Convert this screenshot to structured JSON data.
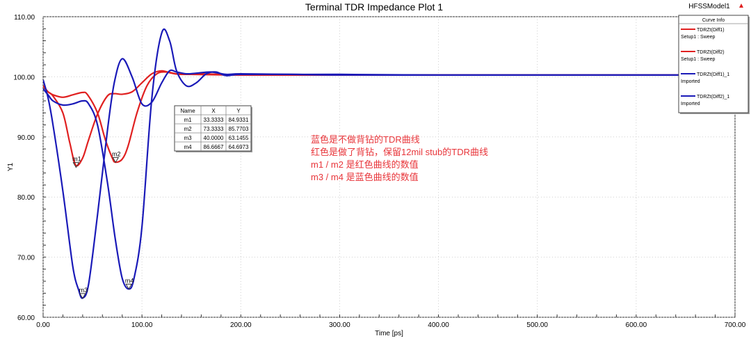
{
  "chart_data": {
    "type": "line",
    "title": "Terminal TDR Impedance Plot 1",
    "model_label": "HFSSModel1",
    "xlabel": "Time [ps]",
    "ylabel": "Y1",
    "xlim": [
      0,
      700
    ],
    "ylim": [
      60,
      110
    ],
    "x_ticks": [
      "0.00",
      "100.00",
      "200.00",
      "300.00",
      "400.00",
      "500.00",
      "600.00",
      "700.00"
    ],
    "y_ticks": [
      "60.00",
      "70.00",
      "80.00",
      "90.00",
      "100.00",
      "110.00"
    ],
    "grid": true,
    "legend": {
      "title": "Curve Info",
      "placement": "top-right",
      "entries": [
        {
          "line1": "TDRZt(Diff1)",
          "line2": "Setup1 : Sweep",
          "color": "#e02020"
        },
        {
          "line1": "TDRZt(Diff2)",
          "line2": "Setup1 : Sweep",
          "color": "#e02020"
        },
        {
          "line1": "TDRZt(Diff1)_1",
          "line2": "Imported",
          "color": "#1a1ab8"
        },
        {
          "line1": "TDRZt(Diff2)_1",
          "line2": "Imported",
          "color": "#1a1ab8"
        }
      ]
    },
    "series": [
      {
        "color": "#e02020",
        "x": [
          0,
          5,
          10,
          20,
          27,
          33,
          40,
          46,
          55,
          65,
          72,
          80,
          90,
          100,
          110,
          120,
          130,
          140,
          160,
          200,
          300,
          360,
          500,
          645,
          700
        ],
        "y": [
          98.5,
          97.5,
          96.8,
          94,
          89,
          85.3,
          86.5,
          89.5,
          93.8,
          96.8,
          97.2,
          97.1,
          97.5,
          99,
          100.5,
          101,
          100.6,
          100.4,
          100.5,
          100.3,
          100.3,
          100.3,
          100.3,
          100.3,
          100.3
        ]
      },
      {
        "color": "#e02020",
        "x": [
          0,
          5,
          10,
          20,
          30,
          40,
          45,
          55,
          63,
          70,
          73,
          80,
          86,
          95,
          105,
          115,
          125,
          135,
          150,
          200,
          300,
          360,
          500,
          645,
          700
        ],
        "y": [
          98.5,
          97.5,
          97,
          96.6,
          97,
          97.4,
          97,
          94,
          89.5,
          86.5,
          85.8,
          86.3,
          88.5,
          94,
          98.5,
          100.5,
          100.8,
          100.5,
          100.4,
          100.3,
          100.3,
          100.3,
          100.3,
          100.3,
          100.3
        ]
      },
      {
        "color": "#1a1ab8",
        "x": [
          0,
          5,
          10,
          20,
          30,
          36,
          40,
          46,
          55,
          65,
          72,
          80,
          90,
          100,
          110,
          120,
          128,
          135,
          145,
          155,
          170,
          185,
          200,
          250,
          300,
          400,
          500,
          600,
          700
        ],
        "y": [
          99.5,
          96.5,
          92,
          81,
          68.5,
          64.5,
          63.2,
          65.5,
          77,
          91,
          99,
          103,
          100,
          95.5,
          95.8,
          99,
          101,
          100.8,
          100.5,
          100.6,
          100.8,
          100.4,
          100.5,
          100.4,
          100.4,
          100.3,
          100.3,
          100.3,
          100.3
        ]
      },
      {
        "color": "#1a1ab8",
        "x": [
          0,
          5,
          10,
          20,
          30,
          40,
          46,
          55,
          65,
          73,
          80,
          86.7,
          92,
          100,
          110,
          120,
          128,
          135,
          145,
          155,
          165,
          175,
          185,
          200,
          250,
          300,
          400,
          500,
          600,
          700
        ],
        "y": [
          98,
          97,
          96,
          95.3,
          95.5,
          96,
          95.5,
          92,
          82.5,
          73,
          66.5,
          64.7,
          66.5,
          75,
          96.5,
          107.3,
          106,
          101,
          98.5,
          99,
          100.5,
          100.8,
          100.2,
          100.4,
          100.4,
          100.3,
          100.3,
          100.3,
          100.3,
          100.3
        ]
      }
    ],
    "markers": [
      {
        "label": "m1",
        "x": 33.3333,
        "y": 84.9331
      },
      {
        "label": "m2",
        "x": 73.3333,
        "y": 85.7703
      },
      {
        "label": "m3",
        "x": 40.0,
        "y": 63.1455
      },
      {
        "label": "m4",
        "x": 86.6667,
        "y": 64.6973
      }
    ],
    "marker_table": {
      "headers": [
        "Name",
        "X",
        "Y"
      ],
      "rows": [
        [
          "m1",
          "33.3333",
          "84.9331"
        ],
        [
          "m2",
          "73.3333",
          "85.7703"
        ],
        [
          "m3",
          "40.0000",
          "63.1455"
        ],
        [
          "m4",
          "86.6667",
          "64.6973"
        ]
      ]
    },
    "annotations": [
      "蓝色是不做背钻的TDR曲线",
      "红色是做了背钻，保留12mil stub的TDR曲线",
      "m1 / m2 是红色曲线的数值",
      "m3 / m4 是蓝色曲线的数值"
    ],
    "annotation_color": "#e8353a"
  }
}
